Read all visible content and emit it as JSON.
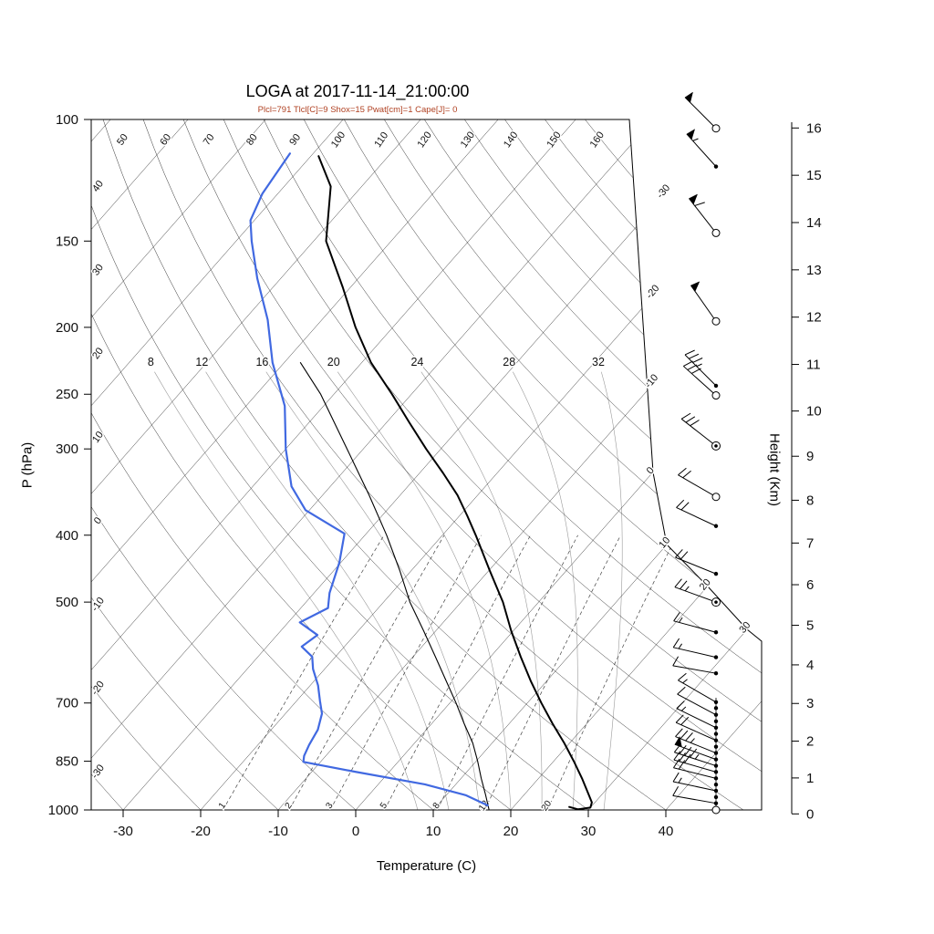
{
  "title": "LOGA at 2017-11-14_21:00:00",
  "subtitle": "Plcl=791 Tlcl[C]=9 Shox=15 Pwat[cm]=1 Cape[J]= 0",
  "indices": {
    "plcl_hpa": 791,
    "tlcl_c": 9,
    "showalter": 15,
    "pwat_cm": 1,
    "cape_j": 0
  },
  "axes": {
    "pressure_label": "P (hPa)",
    "pressure_ticks": [
      100,
      150,
      200,
      250,
      300,
      400,
      500,
      700,
      850,
      1000
    ],
    "temperature_label": "Temperature (C)",
    "temperature_ticks": [
      -30,
      -20,
      -10,
      0,
      10,
      20,
      30,
      40
    ],
    "height_label": "Height (Km)",
    "height_ticks_km": [
      0,
      1,
      2,
      3,
      4,
      5,
      6,
      7,
      8,
      9,
      10,
      11,
      12,
      13,
      14,
      15,
      16
    ]
  },
  "colors": {
    "temperature": "#000000",
    "dewpoint": "#4169e1",
    "parcel": "#000000",
    "subtitle": "#b04122",
    "isotherm": "#1b1b1b",
    "dry_adiabat": "#1b1b1b",
    "moist_adiabat": "#9a9a9a",
    "mixing_ratio": "#444444"
  },
  "background_labels": {
    "isotherms_c": [
      -30,
      -20,
      -10,
      0,
      10,
      20,
      30
    ],
    "dry_adiabats_left_c": [
      40,
      30,
      20,
      10,
      0,
      -10,
      -20,
      -30
    ],
    "dry_adiabats_top_c": [
      50,
      60,
      70,
      80,
      90,
      100,
      110,
      120,
      130,
      140,
      150,
      160
    ],
    "moist_adiabats_c": [
      8,
      12,
      16,
      20,
      24,
      28,
      32
    ],
    "mixing_ratio_gkg": [
      1,
      2,
      3,
      5,
      8,
      12,
      20
    ]
  },
  "chart_data": {
    "type": "line",
    "subtype": "skew-t log-p sounding",
    "pressure_range_hpa": [
      100,
      1000
    ],
    "temperature_range_c": [
      -35,
      45
    ],
    "grid": "skewed 45deg isotherms, dry/moist adiabats, mixing ratio lines",
    "series": [
      {
        "name": "temperature_c_by_hpa",
        "points": [
          [
            113,
            -79
          ],
          [
            125,
            -74
          ],
          [
            150,
            -68.4
          ],
          [
            175,
            -61
          ],
          [
            200,
            -54.8
          ],
          [
            225,
            -48.8
          ],
          [
            250,
            -42.5
          ],
          [
            275,
            -37
          ],
          [
            300,
            -31.9
          ],
          [
            325,
            -27
          ],
          [
            350,
            -22.6
          ],
          [
            375,
            -19
          ],
          [
            400,
            -15.7
          ],
          [
            450,
            -9.9
          ],
          [
            500,
            -4.6
          ],
          [
            550,
            -0.3
          ],
          [
            600,
            3.9
          ],
          [
            650,
            7.9
          ],
          [
            700,
            11.8
          ],
          [
            750,
            15.6
          ],
          [
            800,
            19.3
          ],
          [
            850,
            22.6
          ],
          [
            900,
            25.6
          ],
          [
            950,
            28.3
          ],
          [
            975,
            29.6
          ],
          [
            992,
            30.0
          ],
          [
            998,
            28.6
          ],
          [
            990,
            27.2
          ]
        ]
      },
      {
        "name": "dewpoint_c_by_hpa",
        "points": [
          [
            112,
            -83
          ],
          [
            128,
            -82
          ],
          [
            140,
            -80.5
          ],
          [
            150,
            -78
          ],
          [
            170,
            -73
          ],
          [
            195,
            -67
          ],
          [
            225,
            -61.5
          ],
          [
            260,
            -55
          ],
          [
            300,
            -50
          ],
          [
            340,
            -45
          ],
          [
            368,
            -40.5
          ],
          [
            398,
            -32.8
          ],
          [
            438,
            -30.2
          ],
          [
            485,
            -28
          ],
          [
            510,
            -26.5
          ],
          [
            535,
            -28.5
          ],
          [
            558,
            -24.8
          ],
          [
            580,
            -25.5
          ],
          [
            600,
            -23
          ],
          [
            625,
            -21.5
          ],
          [
            660,
            -19
          ],
          [
            695,
            -17
          ],
          [
            725,
            -15.3
          ],
          [
            765,
            -14
          ],
          [
            805,
            -13.4
          ],
          [
            835,
            -12.8
          ],
          [
            852,
            -12.2
          ],
          [
            880,
            -4.5
          ],
          [
            918,
            6
          ],
          [
            952,
            12.5
          ],
          [
            985,
            16.5
          ]
        ]
      },
      {
        "name": "parcel_c_by_hpa",
        "points": [
          [
            225,
            -57.9
          ],
          [
            250,
            -51.7
          ],
          [
            300,
            -42.1
          ],
          [
            350,
            -34
          ],
          [
            400,
            -27.2
          ],
          [
            450,
            -21.5
          ],
          [
            500,
            -16.6
          ],
          [
            550,
            -11.6
          ],
          [
            600,
            -7.1
          ],
          [
            650,
            -3
          ],
          [
            700,
            0.8
          ],
          [
            750,
            4.2
          ],
          [
            800,
            7.5
          ],
          [
            850,
            10.2
          ],
          [
            900,
            12.6
          ],
          [
            950,
            15
          ],
          [
            1000,
            17.2
          ]
        ]
      }
    ]
  },
  "wind_barbs": [
    {
      "p": 103,
      "marker": "circle",
      "spd": 50,
      "dir": 315
    },
    {
      "p": 117,
      "marker": "dot",
      "spd": 55,
      "dir": 318
    },
    {
      "p": 146,
      "marker": "circle",
      "spd": 60,
      "dir": 322
    },
    {
      "p": 196,
      "marker": "circle",
      "spd": 50,
      "dir": 325
    },
    {
      "p": 243,
      "marker": "dot",
      "spd": 35,
      "dir": 315
    },
    {
      "p": 251,
      "marker": "circle",
      "spd": 30,
      "dir": 312
    },
    {
      "p": 297,
      "marker": "circle-dot",
      "spd": 30,
      "dir": 308
    },
    {
      "p": 352,
      "marker": "circle",
      "spd": 20,
      "dir": 300
    },
    {
      "p": 388,
      "marker": "dot",
      "spd": 20,
      "dir": 295
    },
    {
      "p": 455,
      "marker": "dot",
      "spd": 20,
      "dir": 292
    },
    {
      "p": 500,
      "marker": "circle-dot",
      "spd": 25,
      "dir": 290
    },
    {
      "p": 553,
      "marker": "dot",
      "spd": 15,
      "dir": 285
    },
    {
      "p": 601,
      "marker": "dot",
      "spd": 15,
      "dir": 283
    },
    {
      "p": 634,
      "marker": "dot",
      "spd": 10,
      "dir": 280
    },
    {
      "p": 698,
      "marker": "dot",
      "spd": 15,
      "dir": 300
    },
    {
      "p": 712,
      "marker": "dot",
      "spd": null,
      "dir": null
    },
    {
      "p": 728,
      "marker": "dot",
      "spd": 10,
      "dir": 298
    },
    {
      "p": 744,
      "marker": "dot",
      "spd": null,
      "dir": null
    },
    {
      "p": 760,
      "marker": "dot",
      "spd": 15,
      "dir": 296
    },
    {
      "p": 776,
      "marker": "dot",
      "spd": null,
      "dir": null
    },
    {
      "p": 793,
      "marker": "dot",
      "spd": 20,
      "dir": 294
    },
    {
      "p": 810,
      "marker": "dot",
      "spd": null,
      "dir": null
    },
    {
      "p": 827,
      "marker": "dot",
      "spd": 35,
      "dir": 292
    },
    {
      "p": 845,
      "marker": "dot",
      "spd": 50,
      "dir": 290
    },
    {
      "p": 863,
      "marker": "dot",
      "spd": 45,
      "dir": 288
    },
    {
      "p": 881,
      "marker": "dot",
      "spd": 30,
      "dir": 286
    },
    {
      "p": 900,
      "marker": "dot",
      "spd": 20,
      "dir": 284
    },
    {
      "p": 919,
      "marker": "dot",
      "spd": null,
      "dir": null
    },
    {
      "p": 938,
      "marker": "dot",
      "spd": 15,
      "dir": 282
    },
    {
      "p": 958,
      "marker": "dot",
      "spd": null,
      "dir": null
    },
    {
      "p": 978,
      "marker": "dot",
      "spd": 10,
      "dir": 280
    },
    {
      "p": 1000,
      "marker": "circle",
      "spd": null,
      "dir": null
    }
  ]
}
